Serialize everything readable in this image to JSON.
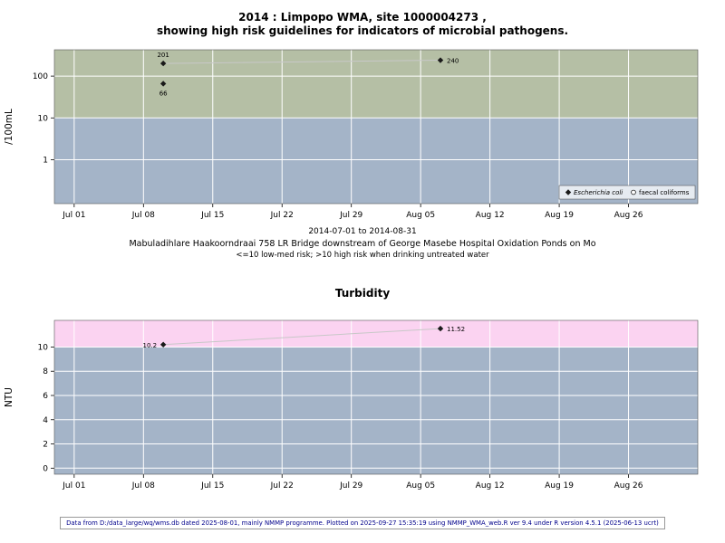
{
  "page": {
    "footer": "Data from D:/data_large/wq/wms.db dated 2025-08-01, mainly NMMP programme. Plotted on 2025-09-27 15:35:19 using NMMP_WMA_web.R ver 9.4 under R version 4.5.1 (2025-06-13 ucrt)"
  },
  "chart_data": [
    {
      "type": "scatter",
      "title_lines": [
        "2014 : Limpopo WMA, site 1000004273 ,",
        "showing high risk guidelines for indicators of microbial pathogens."
      ],
      "ylabel": "/100mL",
      "yscale": "log",
      "yticks": [
        1,
        10,
        100
      ],
      "ylim_log": [
        -1.05,
        2.63
      ],
      "threshold": 10,
      "grid": true,
      "colors": {
        "band_above": "#b5bfa5",
        "band_below": "#a4b4c8",
        "grid": "#ffffff",
        "point": "#1a1a1a",
        "trend_line": "#c8c8c8"
      },
      "x_domain": [
        "2014-06-29",
        "2014-09-02"
      ],
      "xticks": [
        {
          "date": "2014-07-01",
          "label": "Jul 01"
        },
        {
          "date": "2014-07-08",
          "label": "Jul 08"
        },
        {
          "date": "2014-07-15",
          "label": "Jul 15"
        },
        {
          "date": "2014-07-22",
          "label": "Jul 22"
        },
        {
          "date": "2014-07-29",
          "label": "Jul 29"
        },
        {
          "date": "2014-08-05",
          "label": "Aug 05"
        },
        {
          "date": "2014-08-12",
          "label": "Aug 12"
        },
        {
          "date": "2014-08-19",
          "label": "Aug 19"
        },
        {
          "date": "2014-08-26",
          "label": "Aug 26"
        }
      ],
      "series": [
        {
          "name": "Escherichia coli",
          "marker": "diamond",
          "points": [
            {
              "date": "2014-07-10",
              "value": 201,
              "label": "201",
              "label_pos": "above"
            },
            {
              "date": "2014-07-10",
              "value": 66,
              "label": "66",
              "label_pos": "below"
            },
            {
              "date": "2014-08-07",
              "value": 240,
              "label": "240",
              "label_pos": "right"
            }
          ],
          "line": [
            {
              "date": "2014-07-10",
              "value": 201
            },
            {
              "date": "2014-08-07",
              "value": 240
            }
          ]
        },
        {
          "name": "faecal coliforms",
          "marker": "circle-open",
          "points": []
        }
      ],
      "legend": {
        "items": [
          {
            "label": "Escherichia coli",
            "marker": "diamond",
            "italic": true
          },
          {
            "label": "faecal coliforms",
            "marker": "circle-open",
            "italic": false
          }
        ]
      },
      "captions": [
        "2014-07-01 to 2014-08-31",
        "Mabuladihlare Haakoorndraai 758 LR Bridge downstream of George Masebe Hospital Oxidation Ponds on Mo",
        "<=10 low-med risk; >10 high risk when drinking untreated water"
      ]
    },
    {
      "type": "scatter",
      "title_lines": [
        "Turbidity"
      ],
      "ylabel": "NTU",
      "yscale": "linear",
      "yticks": [
        0,
        2,
        4,
        6,
        8,
        10
      ],
      "ylim": [
        -0.5,
        12.2
      ],
      "threshold": 10,
      "grid": true,
      "colors": {
        "band_above": "#fbd3f1",
        "band_below": "#a4b4c8",
        "grid": "#ffffff",
        "point": "#1a1a1a",
        "trend_line": "#c8c8c8"
      },
      "x_domain": [
        "2014-06-29",
        "2014-09-02"
      ],
      "xticks": [
        {
          "date": "2014-07-01",
          "label": "Jul 01"
        },
        {
          "date": "2014-07-08",
          "label": "Jul 08"
        },
        {
          "date": "2014-07-15",
          "label": "Jul 15"
        },
        {
          "date": "2014-07-22",
          "label": "Jul 22"
        },
        {
          "date": "2014-07-29",
          "label": "Jul 29"
        },
        {
          "date": "2014-08-05",
          "label": "Aug 05"
        },
        {
          "date": "2014-08-12",
          "label": "Aug 12"
        },
        {
          "date": "2014-08-19",
          "label": "Aug 19"
        },
        {
          "date": "2014-08-26",
          "label": "Aug 26"
        }
      ],
      "series": [
        {
          "name": "Turbidity",
          "marker": "diamond",
          "points": [
            {
              "date": "2014-07-10",
              "value": 10.2,
              "label": "10.2",
              "label_pos": "left"
            },
            {
              "date": "2014-08-07",
              "value": 11.52,
              "label": "11.52",
              "label_pos": "right"
            }
          ],
          "line": [
            {
              "date": "2014-07-10",
              "value": 10.2
            },
            {
              "date": "2014-08-07",
              "value": 11.52
            }
          ]
        }
      ]
    }
  ]
}
